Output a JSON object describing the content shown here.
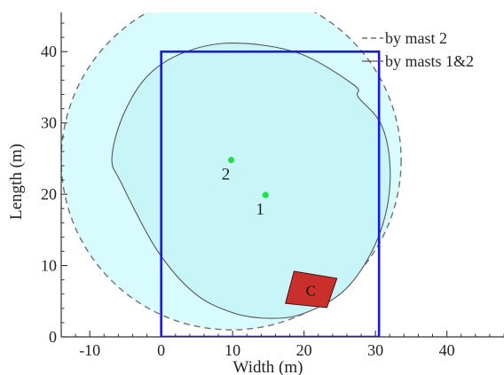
{
  "chart_data": {
    "type": "scatter",
    "xlabel": "Width (m)",
    "ylabel": "Length (m)",
    "xlim": [
      -14,
      48
    ],
    "ylim": [
      0,
      45.5
    ],
    "x_ticks": [
      -10,
      0,
      10,
      20,
      30,
      40
    ],
    "y_ticks": [
      0,
      10,
      20,
      30,
      40
    ],
    "legend": {
      "placement": "top-right",
      "entries": [
        {
          "label": "by mast 2",
          "style": "dashed"
        },
        {
          "label": "by masts 1&2",
          "style": "solid"
        }
      ]
    },
    "outer_coverage": {
      "legend_label": "by mast 2",
      "center": [
        9.8,
        24.8
      ],
      "radius": 23.8,
      "line_color": "#707070",
      "fill_color": "#d8fbfd"
    },
    "inner_coverage": {
      "legend_label": "by masts 1&2",
      "outline": [
        [
          9.9,
          41.2
        ],
        [
          19.2,
          39.8
        ],
        [
          27.0,
          35.3
        ],
        [
          27.6,
          33.6
        ],
        [
          30.7,
          30.0
        ],
        [
          32.0,
          24.6
        ],
        [
          31.6,
          18.0
        ],
        [
          29.3,
          11.6
        ],
        [
          25.4,
          6.3
        ],
        [
          20.0,
          3.3
        ],
        [
          15.5,
          2.6
        ],
        [
          10.3,
          3.3
        ],
        [
          4.7,
          6.1
        ],
        [
          -0.6,
          12.2
        ],
        [
          -5.6,
          21.6
        ],
        [
          -6.9,
          25.0
        ],
        [
          -5.4,
          30.9
        ],
        [
          -2.0,
          36.5
        ],
        [
          3.0,
          39.8
        ]
      ],
      "line_color": "#555555",
      "fill_color": "#c8f6f8"
    },
    "boundary": {
      "x": [
        0,
        30.5
      ],
      "y": [
        0,
        40
      ],
      "color": "#1a1adf"
    },
    "points": [
      {
        "label": "1",
        "x": 14.6,
        "y": 19.9,
        "color": "#22e04a"
      },
      {
        "label": "2",
        "x": 9.8,
        "y": 24.8,
        "color": "#22e04a"
      }
    ],
    "region": {
      "label": "C",
      "corners": [
        [
          18.6,
          9.2
        ],
        [
          24.6,
          8.2
        ],
        [
          23.2,
          4.1
        ],
        [
          17.4,
          4.7
        ]
      ],
      "fill_color": "#c9302c",
      "edge_color": "#4a0f0f"
    }
  }
}
